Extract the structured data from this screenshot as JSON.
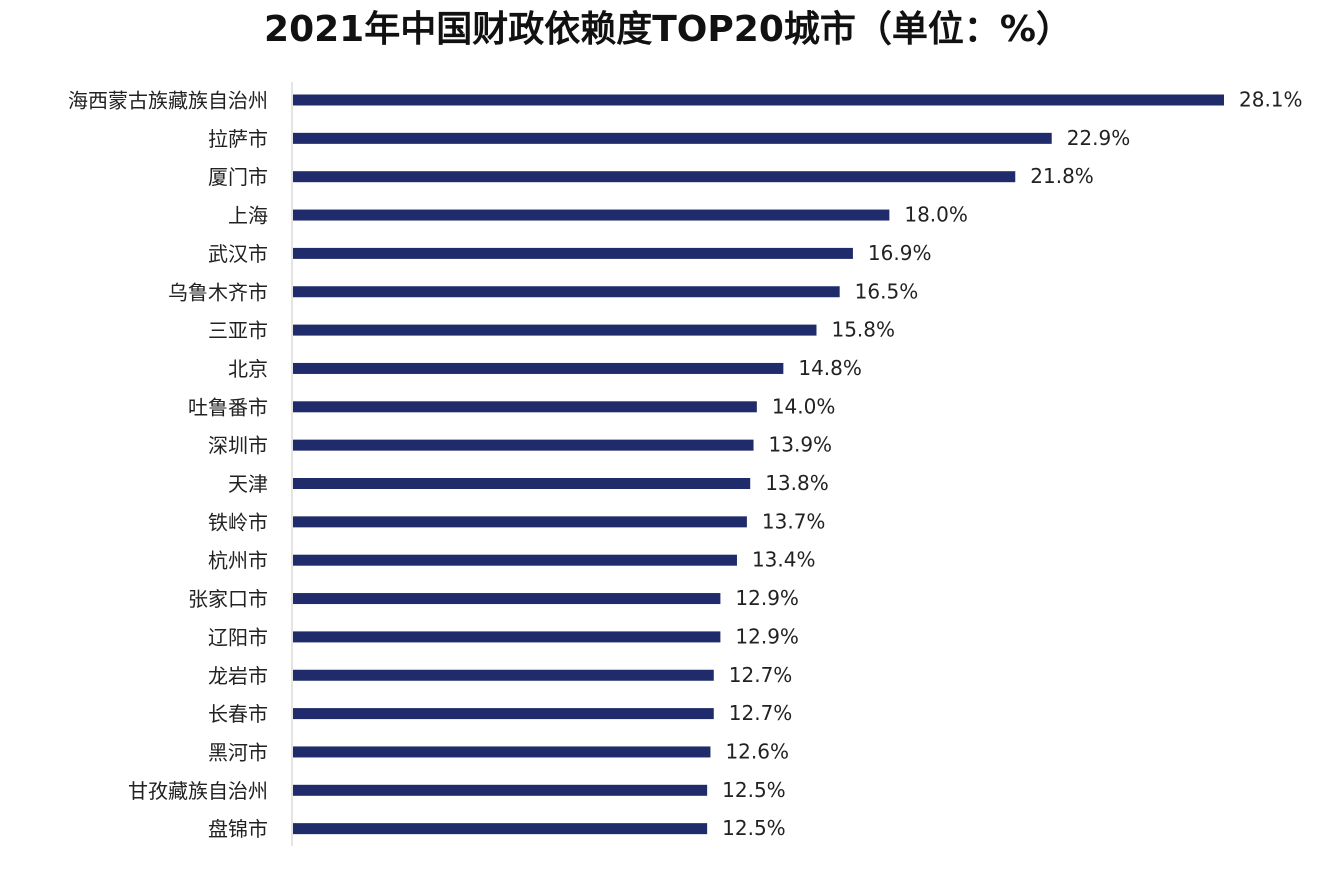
{
  "chart_data": {
    "type": "bar",
    "title": "2021年中国财政依赖度TOP20城市（单位：%）",
    "categories": [
      "海西蒙古族藏族自治州",
      "拉萨市",
      "厦门市",
      "上海",
      "武汉市",
      "乌鲁木齐市",
      "三亚市",
      "北京",
      "吐鲁番市",
      "深圳市",
      "天津",
      "铁岭市",
      "杭州市",
      "张家口市",
      "辽阳市",
      "龙岩市",
      "长春市",
      "黑河市",
      "甘孜藏族自治州",
      "盘锦市"
    ],
    "values": [
      28.1,
      22.9,
      21.8,
      18.0,
      16.9,
      16.5,
      15.8,
      14.8,
      14.0,
      13.9,
      13.8,
      13.7,
      13.4,
      12.9,
      12.9,
      12.7,
      12.7,
      12.6,
      12.5,
      12.5
    ],
    "value_labels": [
      "28.1%",
      "22.9%",
      "21.8%",
      "18.0%",
      "16.9%",
      "16.5%",
      "15.8%",
      "14.8%",
      "14.0%",
      "13.9%",
      "13.8%",
      "13.7%",
      "13.4%",
      "12.9%",
      "12.9%",
      "12.7%",
      "12.7%",
      "12.6%",
      "12.5%",
      "12.5%"
    ],
    "color": "#1f2b6b"
  }
}
